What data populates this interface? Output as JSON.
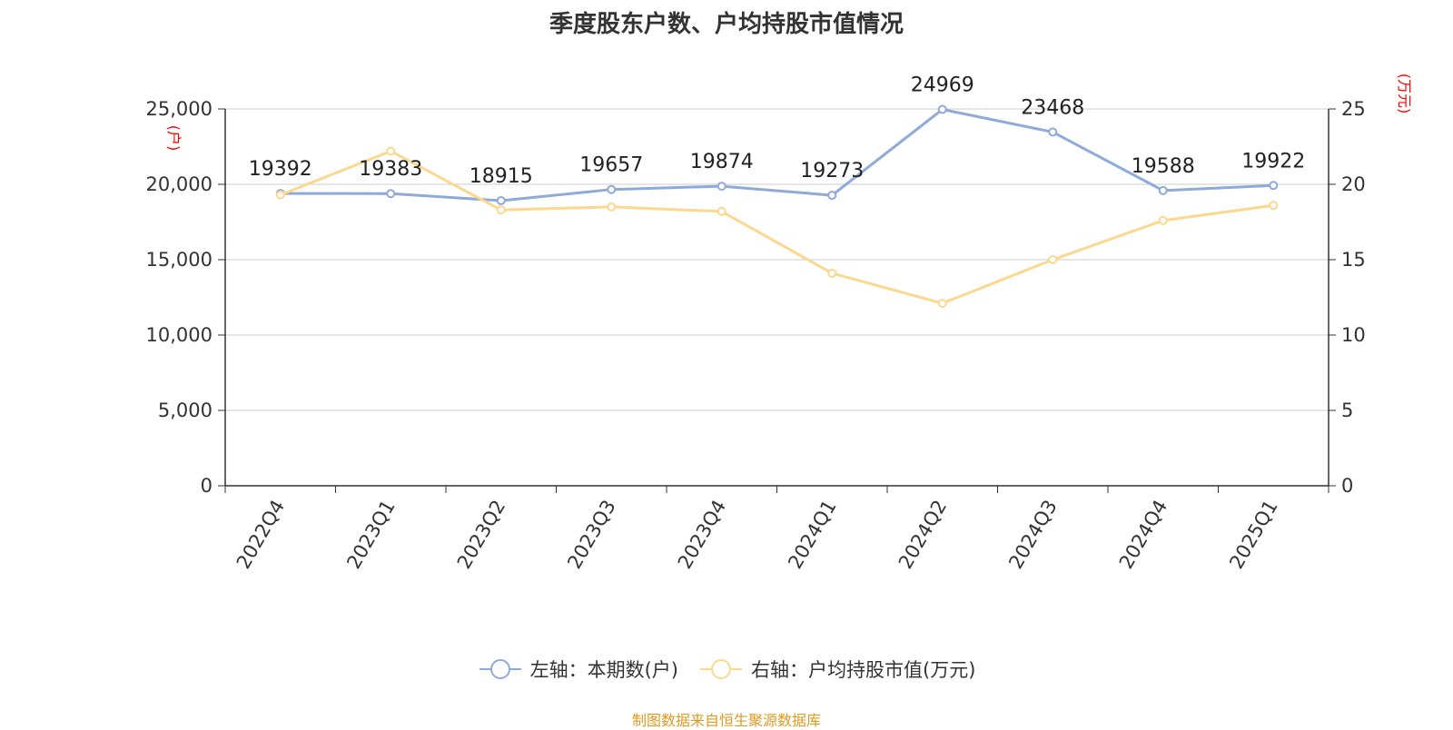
{
  "chart_data": {
    "type": "line",
    "title": "季度股东户数、户均持股市值情况",
    "categories": [
      "2022Q4",
      "2023Q1",
      "2023Q2",
      "2023Q3",
      "2023Q4",
      "2024Q1",
      "2024Q2",
      "2024Q3",
      "2024Q4",
      "2025Q1"
    ],
    "series": [
      {
        "name": "左轴：本期数(户)",
        "axis": "left",
        "color": "#8eaad9",
        "values": [
          19392,
          19383,
          18915,
          19657,
          19874,
          19273,
          24969,
          23468,
          19588,
          19922
        ],
        "data_labels": [
          "19392",
          "19383",
          "18915",
          "19657",
          "19874",
          "19273",
          "24969",
          "23468",
          "19588",
          "19922"
        ]
      },
      {
        "name": "右轴：户均持股市值(万元)",
        "axis": "right",
        "color": "#fcd88f",
        "values": [
          19.3,
          22.2,
          18.3,
          18.5,
          18.2,
          14.1,
          12.1,
          15.0,
          17.6,
          18.6
        ]
      }
    ],
    "y_left": {
      "label": "(户)",
      "ylim": [
        0,
        25000
      ],
      "ticks": [
        0,
        5000,
        10000,
        15000,
        20000,
        25000
      ],
      "tick_labels": [
        "0",
        "5,000",
        "10,000",
        "15,000",
        "20,000",
        "25,000"
      ]
    },
    "y_right": {
      "label": "(万元)",
      "ylim": [
        0,
        25
      ],
      "ticks": [
        0,
        5,
        10,
        15,
        20,
        25
      ],
      "tick_labels": [
        "0",
        "5",
        "10",
        "15",
        "20",
        "25"
      ]
    },
    "grid": true,
    "legend_position": "bottom",
    "axis_label_color": "#ff0000"
  },
  "source": "制图数据来自恒生聚源数据库",
  "colors": {
    "grid": "#cccccc",
    "axis": "#333333",
    "source": "#e09a1f"
  }
}
